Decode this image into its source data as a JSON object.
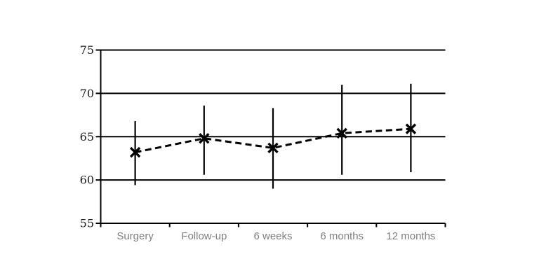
{
  "chart_data": {
    "type": "line",
    "title": "",
    "xlabel": "",
    "ylabel": "",
    "categories": [
      "Surgery",
      "Follow-up",
      "6 weeks",
      "6 months",
      "12 months"
    ],
    "series": [
      {
        "values": [
          63.2,
          64.8,
          63.7,
          65.4,
          65.9
        ],
        "error_low": [
          59.4,
          60.6,
          59.0,
          60.6,
          60.9
        ],
        "error_high": [
          66.8,
          68.6,
          68.3,
          71.0,
          71.1
        ]
      }
    ],
    "ylim": [
      55,
      75
    ],
    "yticks": [
      75,
      70,
      65,
      60,
      55
    ],
    "ytick_step": 5,
    "line_style": "dashed",
    "marker": "x",
    "error_bars": "vertical-no-caps",
    "grid": "horizontal",
    "legend": "none",
    "colors": {
      "line": "#000000",
      "marker": "#000000",
      "error_bar": "#000000",
      "gridline": "#000000",
      "axis": "#000000",
      "y_tick_label": "#1a1a1a",
      "x_tick_label": "#7f7f7f",
      "background": "#ffffff"
    }
  }
}
